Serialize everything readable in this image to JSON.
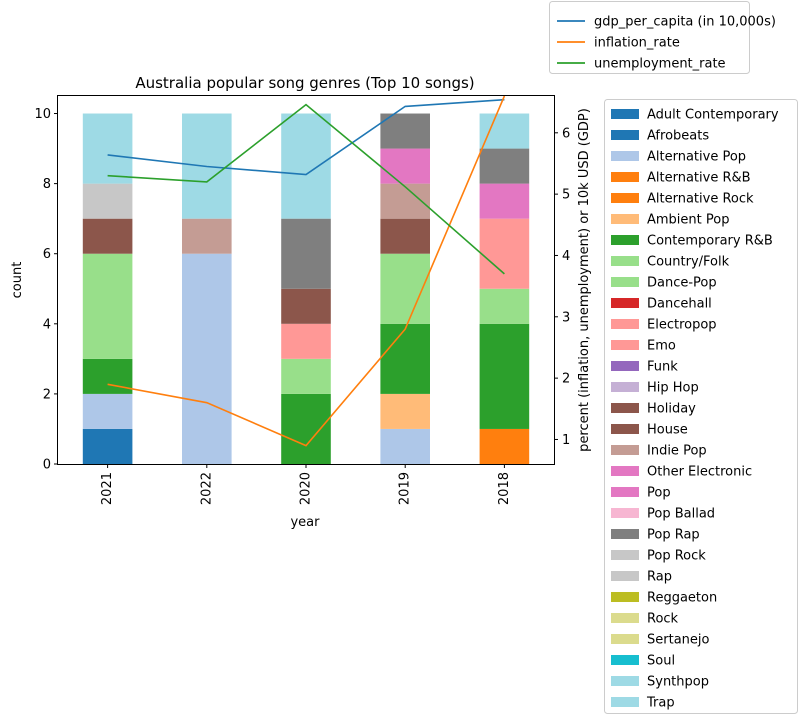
{
  "chart_data": {
    "type": "bar",
    "stacked": true,
    "title": "Australia popular song genres (Top 10 songs)",
    "xlabel": "year",
    "ylabel": "count",
    "ylabel_right": "percent (inflation, unemployment) or 10k USD (GDP)",
    "categories": [
      "2021",
      "2022",
      "2020",
      "2019",
      "2018"
    ],
    "ylim": [
      0,
      10.5
    ],
    "yticks": [
      0,
      2,
      4,
      6,
      8,
      10
    ],
    "ylim_right": [
      0.6,
      6.6
    ],
    "yticks_right": [
      1,
      2,
      3,
      4,
      5,
      6
    ],
    "grid": false,
    "legend_placement": "right",
    "genres": [
      {
        "name": "Adult Contemporary",
        "color": "#1f77b4",
        "values": [
          1,
          0,
          0,
          0,
          0
        ]
      },
      {
        "name": "Afrobeats",
        "color": "#1f77b4",
        "values": [
          0,
          0,
          0,
          0,
          0
        ]
      },
      {
        "name": "Alternative Pop",
        "color": "#aec7e8",
        "values": [
          1,
          6,
          0,
          1,
          0
        ]
      },
      {
        "name": "Alternative R&B",
        "color": "#ff7f0e",
        "values": [
          0,
          0,
          0,
          0,
          0
        ]
      },
      {
        "name": "Alternative Rock",
        "color": "#ff7f0e",
        "values": [
          0,
          0,
          0,
          0,
          1
        ]
      },
      {
        "name": "Ambient Pop",
        "color": "#ffbb78",
        "values": [
          0,
          0,
          0,
          1,
          0
        ]
      },
      {
        "name": "Contemporary R&B",
        "color": "#2ca02c",
        "values": [
          1,
          0,
          2,
          2,
          3
        ]
      },
      {
        "name": "Country/Folk",
        "color": "#98df8a",
        "values": [
          3,
          0,
          0,
          0,
          0
        ]
      },
      {
        "name": "Dance-Pop",
        "color": "#98df8a",
        "values": [
          0,
          0,
          1,
          2,
          1
        ]
      },
      {
        "name": "Dancehall",
        "color": "#d62728",
        "values": [
          0,
          0,
          0,
          0,
          0
        ]
      },
      {
        "name": "Electropop",
        "color": "#ff9896",
        "values": [
          0,
          0,
          1,
          0,
          0
        ]
      },
      {
        "name": "Emo",
        "color": "#ff9896",
        "values": [
          0,
          0,
          0,
          0,
          2
        ]
      },
      {
        "name": "Funk",
        "color": "#9467bd",
        "values": [
          0,
          0,
          0,
          0,
          0
        ]
      },
      {
        "name": "Hip Hop",
        "color": "#c5b0d5",
        "values": [
          0,
          0,
          0,
          0,
          0
        ]
      },
      {
        "name": "Holiday",
        "color": "#8c564b",
        "values": [
          1,
          0,
          0,
          1,
          0
        ]
      },
      {
        "name": "House",
        "color": "#8c564b",
        "values": [
          0,
          0,
          1,
          0,
          0
        ]
      },
      {
        "name": "Indie Pop",
        "color": "#c49c94",
        "values": [
          0,
          1,
          0,
          1,
          0
        ]
      },
      {
        "name": "Other Electronic",
        "color": "#e377c2",
        "values": [
          0,
          0,
          0,
          0,
          1
        ]
      },
      {
        "name": "Pop",
        "color": "#e377c2",
        "values": [
          0,
          0,
          0,
          1,
          0
        ]
      },
      {
        "name": "Pop Ballad",
        "color": "#f7b6d2",
        "values": [
          0,
          0,
          0,
          0,
          0
        ]
      },
      {
        "name": "Pop Rap",
        "color": "#7f7f7f",
        "values": [
          0,
          0,
          2,
          1,
          1
        ]
      },
      {
        "name": "Pop Rock",
        "color": "#c7c7c7",
        "values": [
          1,
          0,
          0,
          0,
          0
        ]
      },
      {
        "name": "Rap",
        "color": "#c7c7c7",
        "values": [
          0,
          0,
          0,
          0,
          0
        ]
      },
      {
        "name": "Reggaeton",
        "color": "#bcbd22",
        "values": [
          0,
          0,
          0,
          0,
          0
        ]
      },
      {
        "name": "Rock",
        "color": "#dbdb8d",
        "values": [
          0,
          0,
          0,
          0,
          0
        ]
      },
      {
        "name": "Sertanejo",
        "color": "#dbdb8d",
        "values": [
          0,
          0,
          0,
          0,
          0
        ]
      },
      {
        "name": "Soul",
        "color": "#17becf",
        "values": [
          0,
          0,
          0,
          0,
          0
        ]
      },
      {
        "name": "Synthpop",
        "color": "#9edae5",
        "values": [
          2,
          3,
          3,
          0,
          0
        ]
      },
      {
        "name": "Trap",
        "color": "#9edae5",
        "values": [
          0,
          0,
          0,
          0,
          1
        ]
      }
    ],
    "lines": [
      {
        "name": "gdp_per_capita (in 10,000s)",
        "color": "#1f77b4",
        "values": [
          5.64,
          5.45,
          5.32,
          6.43,
          6.54
        ]
      },
      {
        "name": "inflation_rate",
        "color": "#ff7f0e",
        "values": [
          1.9,
          1.6,
          0.9,
          2.8,
          6.6
        ]
      },
      {
        "name": "unemployment_rate",
        "color": "#2ca02c",
        "values": [
          5.3,
          5.2,
          6.46,
          5.12,
          3.7
        ]
      }
    ]
  }
}
